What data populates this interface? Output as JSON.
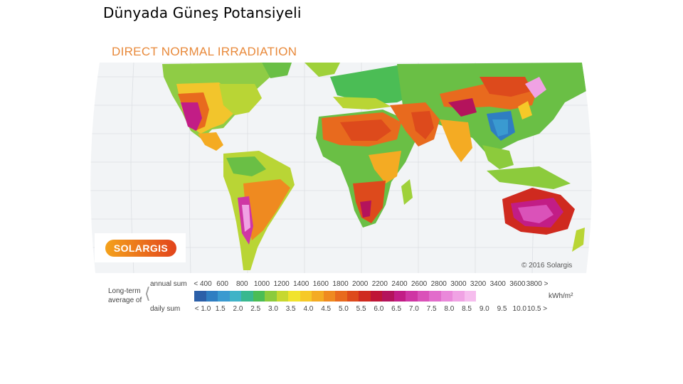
{
  "slide": {
    "title": "Dünyada Güneş Potansiyeli"
  },
  "map": {
    "heading": "DIRECT NORMAL IRRADIATION",
    "logo_text": "SOLARGIS",
    "copyright": "© 2016 Solargis",
    "colors": {
      "ocean": "#ffffff",
      "grid": "#d9d9d9",
      "land_low": "#4db34d",
      "land_high": "#c8176a"
    }
  },
  "legend": {
    "caption_line1": "Long-term",
    "caption_line2": "average of",
    "annual_label": "annual sum",
    "daily_label": "daily sum",
    "unit": "kWh/m²",
    "annual_ticks": [
      "< 400",
      "600",
      "800",
      "1000",
      "1200",
      "1400",
      "1600",
      "1800",
      "2000",
      "2200",
      "2400",
      "2600",
      "2800",
      "3000",
      "3200",
      "3400",
      "3600",
      "3800 >"
    ],
    "daily_ticks": [
      "< 1.0",
      "1.5",
      "2.0",
      "2.5",
      "3.0",
      "3.5",
      "4.0",
      "4.5",
      "5.0",
      "5.5",
      "6.0",
      "6.5",
      "7.0",
      "7.5",
      "8.0",
      "8.5",
      "9.0",
      "9.5",
      "10.0",
      "10.5 >"
    ],
    "swatches": [
      "#2b5fa8",
      "#2f7ec2",
      "#3a9ad0",
      "#3fb3c7",
      "#39b88f",
      "#4bbd55",
      "#8ccb3c",
      "#c7d82f",
      "#f1e32c",
      "#f6c928",
      "#f4ab23",
      "#ef8a20",
      "#e86a1e",
      "#dd4a1c",
      "#cf2a1f",
      "#bf1536",
      "#b4135c",
      "#c21d86",
      "#cf36a4",
      "#da52b9",
      "#e26ccb",
      "#ea88da",
      "#f0a2e4",
      "#f6bdee"
    ]
  }
}
